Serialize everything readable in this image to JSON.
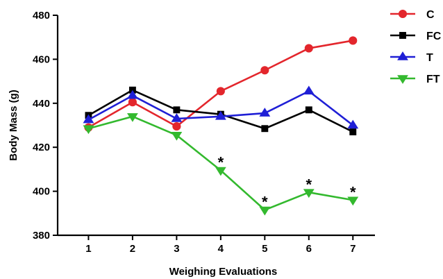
{
  "chart_data": {
    "type": "line",
    "title": "",
    "xlabel": "Weighing Evaluations",
    "ylabel": "Body Mass (g)",
    "x": [
      1,
      2,
      3,
      4,
      5,
      6,
      7
    ],
    "x_tick_labels": [
      "1",
      "2",
      "3",
      "4",
      "5",
      "6",
      "7"
    ],
    "xlim": [
      0.3,
      7.5
    ],
    "ylim": [
      380,
      480
    ],
    "y_ticks": [
      380,
      400,
      420,
      440,
      460,
      480
    ],
    "y_tick_labels": [
      "380",
      "400",
      "420",
      "440",
      "460",
      "480"
    ],
    "grid": false,
    "legend_position": "top-right",
    "series": [
      {
        "name": "C",
        "color": "#e3262c",
        "marker": "circle",
        "values": [
          429,
          440.5,
          429.5,
          445.5,
          455,
          465,
          468.5
        ]
      },
      {
        "name": "FC",
        "color": "#000000",
        "marker": "square",
        "values": [
          434.5,
          446,
          437,
          435,
          428.5,
          437,
          427
        ]
      },
      {
        "name": "T",
        "color": "#1f1fd6",
        "marker": "triangle-up",
        "values": [
          432.5,
          443.5,
          433,
          434,
          435.5,
          445.5,
          430
        ]
      },
      {
        "name": "FT",
        "color": "#33b92e",
        "marker": "triangle-down",
        "values": [
          428.5,
          434,
          425.5,
          409.5,
          391.5,
          399.5,
          396
        ]
      }
    ],
    "annotations": [
      {
        "text": "*",
        "x": 4,
        "y": 414.5
      },
      {
        "text": "*",
        "x": 5,
        "y": 396.5
      },
      {
        "text": "*",
        "x": 6,
        "y": 404.5
      },
      {
        "text": "*",
        "x": 7,
        "y": 401
      }
    ]
  }
}
